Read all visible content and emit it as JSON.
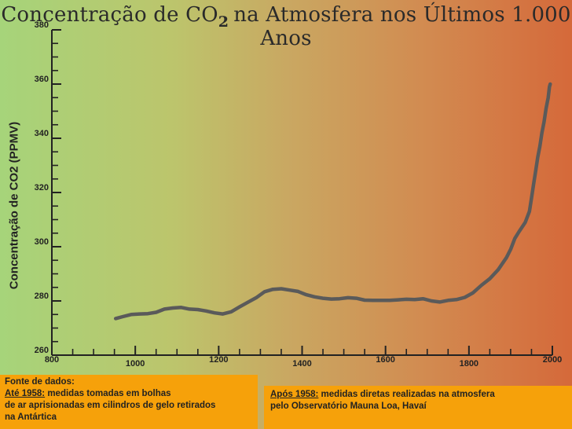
{
  "title": {
    "prefix": "Concentração de CO",
    "subscript": "2",
    "suffix": "na Atmosfera nos Últimos 1.000 Anos"
  },
  "chart_data": {
    "type": "line",
    "title": "Concentração de CO2 na Atmosfera nos Últimos 1.000 Anos",
    "xlabel": "",
    "ylabel": "Concentração de CO2 (PPMV)",
    "xlim": [
      800,
      2000
    ],
    "ylim": [
      260,
      380
    ],
    "x_ticks": [
      800,
      1000,
      1200,
      1400,
      1600,
      1800,
      2000
    ],
    "y_ticks": [
      260,
      280,
      300,
      320,
      340,
      360,
      380
    ],
    "grid": false,
    "series": [
      {
        "color": "#5a5a5a",
        "points": [
          [
            953,
            273.5
          ],
          [
            970,
            274.2
          ],
          [
            990,
            275.0
          ],
          [
            1010,
            275.2
          ],
          [
            1030,
            275.3
          ],
          [
            1050,
            275.8
          ],
          [
            1070,
            277.0
          ],
          [
            1090,
            277.4
          ],
          [
            1110,
            277.6
          ],
          [
            1130,
            277.0
          ],
          [
            1150,
            276.8
          ],
          [
            1170,
            276.3
          ],
          [
            1190,
            275.6
          ],
          [
            1210,
            275.2
          ],
          [
            1230,
            276.0
          ],
          [
            1250,
            277.8
          ],
          [
            1270,
            279.5
          ],
          [
            1290,
            281.2
          ],
          [
            1310,
            283.4
          ],
          [
            1330,
            284.3
          ],
          [
            1350,
            284.5
          ],
          [
            1370,
            284.0
          ],
          [
            1390,
            283.5
          ],
          [
            1410,
            282.3
          ],
          [
            1430,
            281.5
          ],
          [
            1450,
            281.0
          ],
          [
            1470,
            280.7
          ],
          [
            1490,
            280.8
          ],
          [
            1510,
            281.2
          ],
          [
            1530,
            281.0
          ],
          [
            1550,
            280.3
          ],
          [
            1570,
            280.2
          ],
          [
            1590,
            280.2
          ],
          [
            1610,
            280.2
          ],
          [
            1630,
            280.4
          ],
          [
            1650,
            280.6
          ],
          [
            1670,
            280.5
          ],
          [
            1690,
            280.8
          ],
          [
            1710,
            280.0
          ],
          [
            1730,
            279.6
          ],
          [
            1750,
            280.2
          ],
          [
            1770,
            280.5
          ],
          [
            1790,
            281.3
          ],
          [
            1810,
            283.0
          ],
          [
            1830,
            285.8
          ],
          [
            1850,
            288.2
          ],
          [
            1870,
            291.5
          ],
          [
            1890,
            296.0
          ],
          [
            1900,
            299.0
          ],
          [
            1910,
            303.0
          ],
          [
            1920,
            305.5
          ],
          [
            1935,
            309.0
          ],
          [
            1945,
            313.0
          ],
          [
            1950,
            318.0
          ],
          [
            1955,
            323.0
          ],
          [
            1960,
            328.0
          ],
          [
            1965,
            333.0
          ],
          [
            1970,
            337.0
          ],
          [
            1975,
            342.0
          ],
          [
            1980,
            346.0
          ],
          [
            1985,
            351.0
          ],
          [
            1990,
            355.0
          ],
          [
            1993,
            359.0
          ],
          [
            1995,
            360.0
          ]
        ]
      }
    ]
  },
  "notes": {
    "left_heading": "Fonte de dados:",
    "left_label": "Até 1958:",
    "left_text_1": " medidas tomadas em bolhas",
    "left_text_2": "de ar aprisionadas em cilindros de gelo retirados",
    "left_text_3": "na Antártica",
    "right_label": "Após 1958:",
    "right_text_1": " medidas diretas realizadas na atmosfera",
    "right_text_2": "pelo Observatório Mauna Loa, Havaí"
  }
}
